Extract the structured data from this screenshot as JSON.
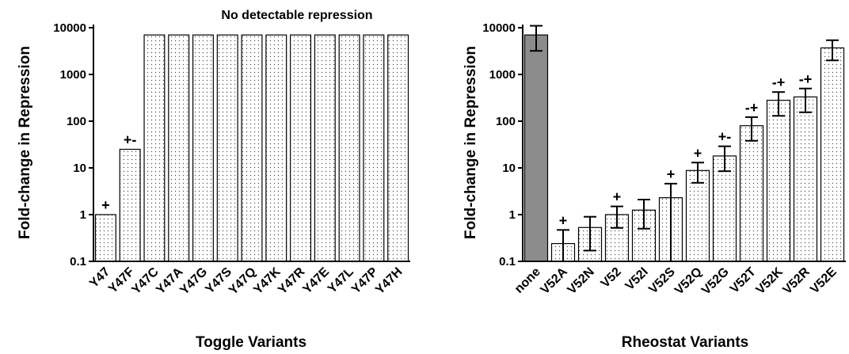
{
  "chart_data": [
    {
      "type": "bar",
      "y_scale": "log",
      "xlabel": "Toggle Variants",
      "ylabel": "Fold-change in Repression",
      "ylim": [
        0.1,
        10000
      ],
      "yticks": [
        "0.1",
        "1",
        "10",
        "100",
        "1000",
        "10000"
      ],
      "annotation": "No detectable repression",
      "categories": [
        "Y47",
        "Y47F",
        "Y47C",
        "Y47A",
        "Y47G",
        "Y47S",
        "Y47Q",
        "Y47K",
        "Y47R",
        "Y47E",
        "Y47L",
        "Y47P",
        "Y47H"
      ],
      "values": [
        1,
        25,
        7000,
        7000,
        7000,
        7000,
        7000,
        7000,
        7000,
        7000,
        7000,
        7000,
        7000
      ],
      "signs": [
        "+",
        "+-",
        "",
        "",
        "",
        "",
        "",
        "",
        "",
        "",
        "",
        "",
        ""
      ],
      "fill": "dotted-light"
    },
    {
      "type": "bar",
      "y_scale": "log",
      "xlabel": "Rheostat Variants",
      "ylabel": "Fold-change in Repression",
      "ylim": [
        0.1,
        10000
      ],
      "yticks": [
        "0.1",
        "1",
        "10",
        "100",
        "1000",
        "10000"
      ],
      "categories": [
        "none",
        "V52A",
        "V52N",
        "V52",
        "V52I",
        "V52S",
        "V52Q",
        "V52G",
        "V52T",
        "V52K",
        "V52R",
        "V52E"
      ],
      "values": [
        7000,
        0.24,
        0.53,
        1.0,
        1.25,
        2.3,
        8.8,
        18,
        80,
        280,
        330,
        3700
      ],
      "error_low": [
        3200,
        0.1,
        0.17,
        0.52,
        0.5,
        0.1,
        4.8,
        8.5,
        38,
        130,
        155,
        2000
      ],
      "error_high": [
        11000,
        0.47,
        0.9,
        1.5,
        2.1,
        4.6,
        13,
        29,
        122,
        420,
        500,
        5400
      ],
      "signs": [
        "",
        "+",
        "",
        "+",
        "",
        "+",
        "+",
        "+-",
        "-+",
        "-+",
        "-+",
        ""
      ],
      "fill": "dotted-light",
      "highlight_fill": "#8c8c8c"
    }
  ]
}
